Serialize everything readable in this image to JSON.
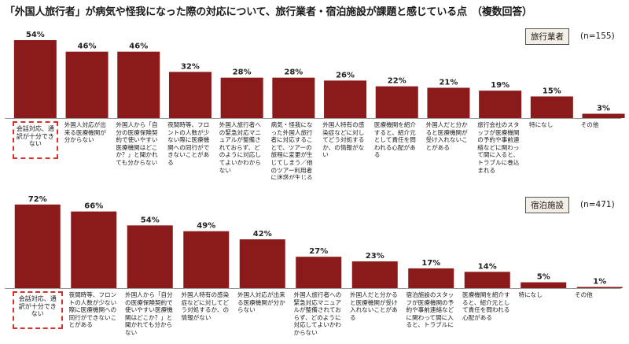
{
  "title": "「外国人旅行者」が病気や怪我になった際の対応について、旅行業者・宿泊施設が課題と感じている点　（複数回答）",
  "colors": {
    "bar": "#8b1a1a",
    "highlight_border": "#d9302a",
    "legend_bg": "#f4efe6"
  },
  "chart_data": [
    {
      "type": "bar",
      "legend": "旅行業者",
      "n_label": "(n=155)",
      "ylim": [
        0,
        60
      ],
      "categories": [
        "会話対応、通訳が十分できない",
        "外国人対応が出来る医療機関が分からない",
        "外国人から「自分の医療保険契約で使いやすい医療機関はどこか？」と聞かれても分からない",
        "夜間時等、フロントの人数が少ない際に医療機関への同行ができないことがある",
        "外国人旅行者への緊急対応マニュアルが整備されておらず、どのように対応してよいかわからない",
        "病気・怪我になった外国人旅行者に対応することで、ツアーの旅程に変更が生じてしまう／他のツアー利用者に迷惑が生じる可能性がある",
        "外国人特有の感染症などに対してどう対処するか、の情報がない",
        "医療機関を紹介すると、紹介元として責任を問われる心配がある",
        "外国人だと分かると医療機関が受け入れないことがある",
        "旅行会社のスタッフが医療機関の予約や事前連絡などに関わって間に入ると、トラブルに巻込まれる",
        "特になし",
        "その他"
      ],
      "values": [
        54,
        46,
        46,
        32,
        28,
        28,
        26,
        22,
        21,
        19,
        15,
        3
      ],
      "value_labels": [
        "54%",
        "46%",
        "46%",
        "32%",
        "28%",
        "28%",
        "26%",
        "22%",
        "21%",
        "19%",
        "15%",
        "3%"
      ]
    },
    {
      "type": "bar",
      "legend": "宿泊施設",
      "n_label": "(n=471)",
      "ylim": [
        0,
        80
      ],
      "categories": [
        "会話対応、通訳が十分できない",
        "夜間時等、フロントの人数が少ない際に医療機関への同行ができないことがある",
        "外国人から「自分の医療保険契約で使いやすい医療機関はどこか？」と聞かれても分からない",
        "外国人特有の感染症などに対してどう対処するか、の情報がない",
        "外国人対応が出来る医療機関が分からない",
        "外国人旅行者への緊急対応マニュアルが整備されておらず、どのように対応してよいかわからない",
        "外国人だと分かると医療機関が受け入れないことがある",
        "宿泊施設のスタッフが医療機関の予約や事前連絡などに関わって間に入ると、トラブルに",
        "医療機関を紹介すると、紹介元として責任を問われる心配がある",
        "特になし",
        "その他"
      ],
      "values": [
        72,
        66,
        54,
        49,
        42,
        27,
        23,
        17,
        14,
        5,
        1
      ],
      "value_labels": [
        "72%",
        "66%",
        "54%",
        "49%",
        "42%",
        "27%",
        "23%",
        "17%",
        "14%",
        "5%",
        "1%"
      ]
    }
  ]
}
